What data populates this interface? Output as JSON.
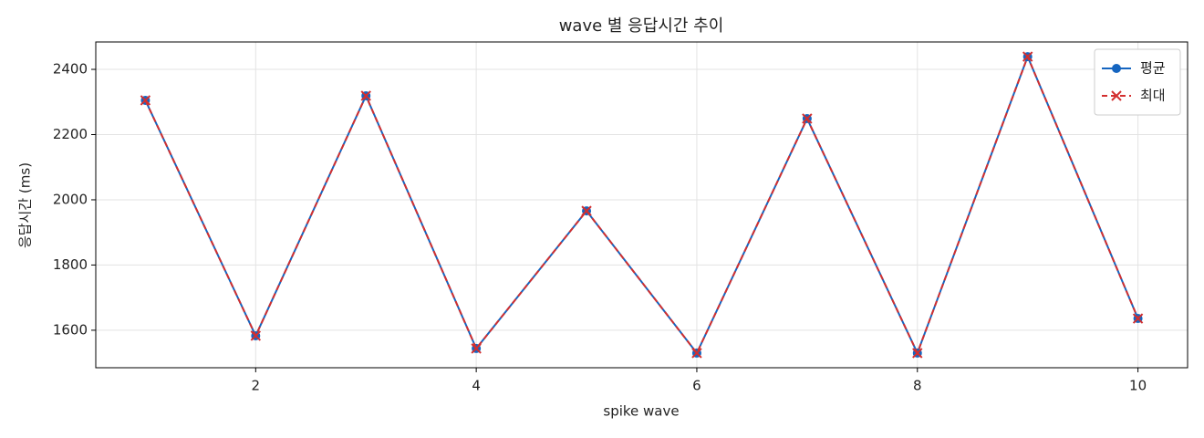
{
  "chart_data": {
    "type": "line",
    "title": "wave 별 응답시간 추이",
    "xlabel": "spike wave",
    "ylabel": "응답시간 (ms)",
    "x": [
      1,
      2,
      3,
      4,
      5,
      6,
      7,
      8,
      9,
      10
    ],
    "series": [
      {
        "name": "평균",
        "color": "#1565c0",
        "marker": "o",
        "linestyle": "solid",
        "values": [
          2305,
          1583,
          2319,
          1544,
          1966,
          1530,
          2249,
          1530,
          2439,
          1636
        ]
      },
      {
        "name": "최대",
        "color": "#d32f2f",
        "marker": "x",
        "linestyle": "dashed",
        "values": [
          2305,
          1583,
          2319,
          1544,
          1966,
          1530,
          2249,
          1530,
          2439,
          1636
        ]
      }
    ],
    "xlim": [
      0.55,
      10.45
    ],
    "ylim": [
      1485,
      2484
    ],
    "xticks": [
      2,
      4,
      6,
      8,
      10
    ],
    "yticks": [
      1600,
      1800,
      2000,
      2200,
      2400
    ],
    "grid": true,
    "legend": "upper right"
  }
}
